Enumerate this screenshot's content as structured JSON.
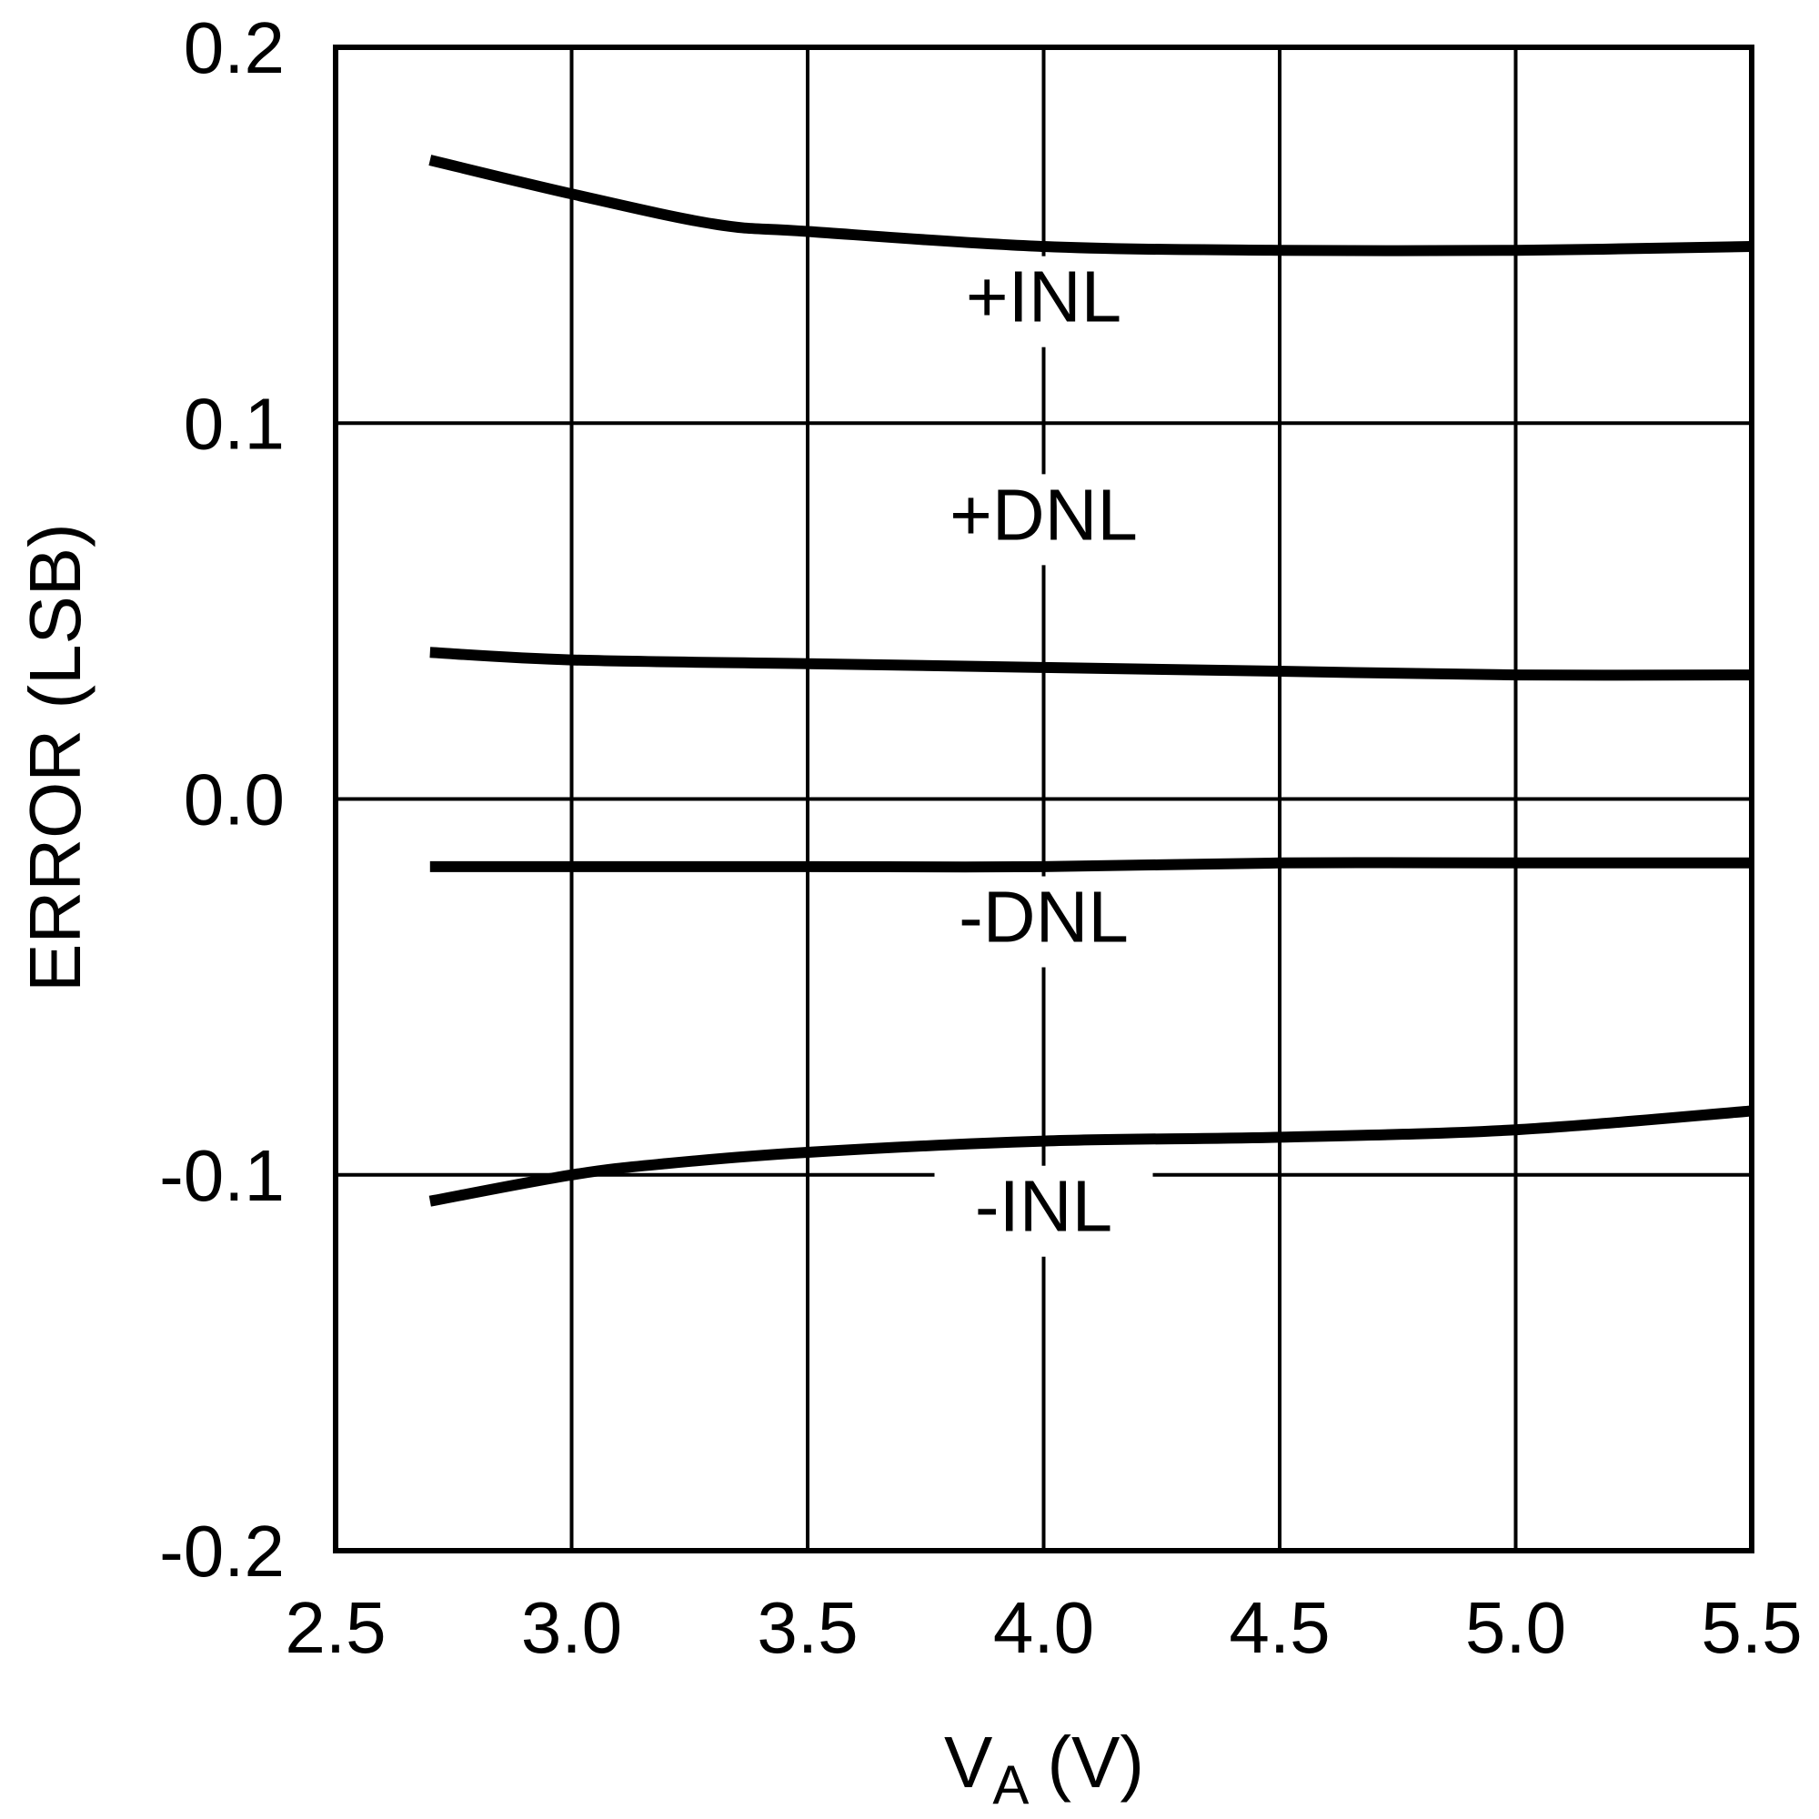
{
  "chart_data": {
    "type": "line",
    "xlabel": "V",
    "xlabel_sub": "A",
    "xlabel_unit": "(V)",
    "ylabel": "ERROR (LSB)",
    "xlim": [
      2.5,
      5.5
    ],
    "ylim": [
      -0.2,
      0.2
    ],
    "x_ticks": [
      "2.5",
      "3.0",
      "3.5",
      "4.0",
      "4.5",
      "5.0",
      "5.5"
    ],
    "y_ticks": [
      "-0.2",
      "-0.1",
      "0.0",
      "0.1",
      "0.2"
    ],
    "grid": true,
    "series": [
      {
        "name": "+INL",
        "x": [
          2.7,
          3.0,
          3.3,
          3.5,
          4.0,
          4.5,
          5.0,
          5.5
        ],
        "y": [
          0.17,
          0.161,
          0.153,
          0.151,
          0.147,
          0.146,
          0.146,
          0.147
        ]
      },
      {
        "name": "+DNL",
        "x": [
          2.7,
          3.0,
          3.5,
          4.0,
          4.5,
          5.0,
          5.5
        ],
        "y": [
          0.039,
          0.037,
          0.036,
          0.035,
          0.034,
          0.033,
          0.033
        ]
      },
      {
        "name": "-DNL",
        "x": [
          2.7,
          3.0,
          3.5,
          4.0,
          4.5,
          5.0,
          5.5
        ],
        "y": [
          -0.018,
          -0.018,
          -0.018,
          -0.018,
          -0.017,
          -0.017,
          -0.017
        ]
      },
      {
        "name": "-INL",
        "x": [
          2.7,
          3.0,
          3.2,
          3.5,
          4.0,
          4.5,
          5.0,
          5.5
        ],
        "y": [
          -0.107,
          -0.1,
          -0.097,
          -0.094,
          -0.091,
          -0.09,
          -0.088,
          -0.083
        ]
      }
    ],
    "series_labels": [
      {
        "text": "+INL",
        "x": 4.0,
        "y": 0.127
      },
      {
        "text": "+DNL",
        "x": 4.0,
        "y": 0.069
      },
      {
        "text": "-DNL",
        "x": 4.0,
        "y": -0.038
      },
      {
        "text": "-INL",
        "x": 4.0,
        "y": -0.115
      }
    ]
  }
}
